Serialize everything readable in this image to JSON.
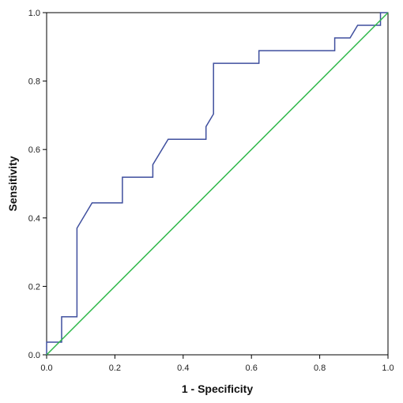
{
  "chart_data": {
    "type": "line",
    "xlabel": "1 - Specificity",
    "ylabel": "Sensitivity",
    "xlim": [
      0.0,
      1.0
    ],
    "ylim": [
      0.0,
      1.0
    ],
    "x_ticks": [
      "0.0",
      "0.2",
      "0.4",
      "0.6",
      "0.8",
      "1.0"
    ],
    "y_ticks": [
      "0.0",
      "0.2",
      "0.4",
      "0.6",
      "0.8",
      "1.0"
    ],
    "grid": false,
    "legend": "none",
    "series": [
      {
        "color": "#3f4f9e",
        "points": [
          [
            0.0,
            0.0
          ],
          [
            0.0,
            0.037
          ],
          [
            0.044,
            0.037
          ],
          [
            0.044,
            0.111
          ],
          [
            0.089,
            0.111
          ],
          [
            0.089,
            0.37
          ],
          [
            0.133,
            0.444
          ],
          [
            0.222,
            0.444
          ],
          [
            0.222,
            0.519
          ],
          [
            0.311,
            0.519
          ],
          [
            0.311,
            0.556
          ],
          [
            0.356,
            0.63
          ],
          [
            0.467,
            0.63
          ],
          [
            0.467,
            0.667
          ],
          [
            0.489,
            0.704
          ],
          [
            0.489,
            0.852
          ],
          [
            0.622,
            0.852
          ],
          [
            0.622,
            0.889
          ],
          [
            0.844,
            0.889
          ],
          [
            0.844,
            0.926
          ],
          [
            0.889,
            0.926
          ],
          [
            0.911,
            0.963
          ],
          [
            0.978,
            0.963
          ],
          [
            0.978,
            1.0
          ],
          [
            1.0,
            1.0
          ]
        ]
      },
      {
        "color": "#2fb84a",
        "points": [
          [
            0.0,
            0.0
          ],
          [
            1.0,
            1.0
          ]
        ]
      }
    ]
  }
}
